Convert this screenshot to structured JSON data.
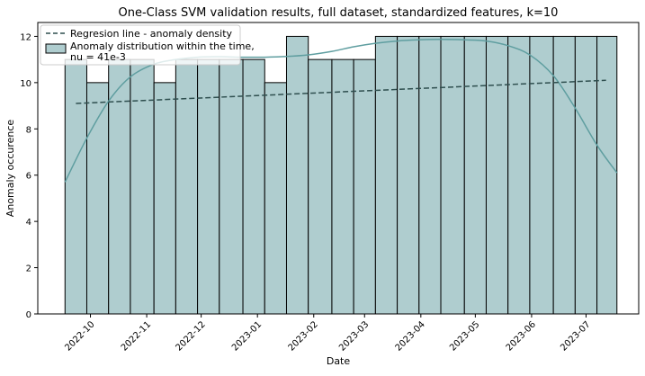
{
  "chart_data": {
    "type": "bar",
    "title": "One-Class SVM validation results, full dataset, standardized features, k=10",
    "xlabel": "Date",
    "ylabel": "Anomaly occurence",
    "ylim": [
      0,
      12.6
    ],
    "xlim": [
      "2022-09-02",
      "2023-07-30"
    ],
    "y_ticks": [
      0,
      2,
      4,
      6,
      8,
      10,
      12
    ],
    "x_ticks": [
      "2022-10",
      "2022-11",
      "2022-12",
      "2023-01",
      "2023-02",
      "2023-03",
      "2023-04",
      "2023-05",
      "2023-06",
      "2023-07"
    ],
    "x_tick_rotation": 45,
    "grid": false,
    "legend_position": "top-left",
    "colors": {
      "bar_fill": "#afcdcf",
      "bar_edge": "#000000",
      "kde_line": "#5f9ea0",
      "regression_line": "#2f4f4f"
    },
    "histogram": {
      "name": "Anomaly distribution within the time,\nnu = 41e-3",
      "bin_edges": [
        "2022-09-17",
        "2022-09-29",
        "2022-10-11",
        "2022-10-23",
        "2022-11-05",
        "2022-11-17",
        "2022-11-29",
        "2022-12-11",
        "2022-12-24",
        "2023-01-05",
        "2023-01-17",
        "2023-01-29",
        "2023-02-11",
        "2023-02-23",
        "2023-03-07",
        "2023-03-19",
        "2023-03-31",
        "2023-04-12",
        "2023-04-25",
        "2023-05-07",
        "2023-05-19",
        "2023-05-31",
        "2023-06-13",
        "2023-06-25",
        "2023-07-07",
        "2023-07-18"
      ],
      "values": [
        11,
        10,
        11,
        11,
        10,
        11,
        11,
        11,
        11,
        10,
        12,
        11,
        11,
        11,
        12,
        12,
        12,
        12,
        12,
        12,
        12,
        12,
        12,
        12,
        12
      ]
    },
    "kde": {
      "name": "kde",
      "x": [
        "2022-09-17",
        "2022-09-29",
        "2022-10-11",
        "2022-10-23",
        "2022-11-05",
        "2022-11-17",
        "2022-11-29",
        "2022-12-11",
        "2022-12-24",
        "2023-01-05",
        "2023-01-17",
        "2023-01-29",
        "2023-02-11",
        "2023-02-23",
        "2023-03-07",
        "2023-03-19",
        "2023-03-31",
        "2023-04-12",
        "2023-04-25",
        "2023-05-07",
        "2023-05-19",
        "2023-05-31",
        "2023-06-13",
        "2023-06-25",
        "2023-07-07",
        "2023-07-18"
      ],
      "y": [
        5.7,
        7.6,
        9.2,
        10.25,
        10.8,
        11.0,
        11.1,
        11.12,
        11.1,
        11.1,
        11.13,
        11.2,
        11.35,
        11.55,
        11.7,
        11.8,
        11.85,
        11.87,
        11.85,
        11.8,
        11.6,
        11.2,
        10.3,
        8.9,
        7.3,
        6.1
      ]
    },
    "regression": {
      "name": "Regresion line - anomaly density",
      "x": [
        "2022-09-23",
        "2023-07-12"
      ],
      "y": [
        9.1,
        10.1
      ],
      "style": "dashed"
    }
  }
}
